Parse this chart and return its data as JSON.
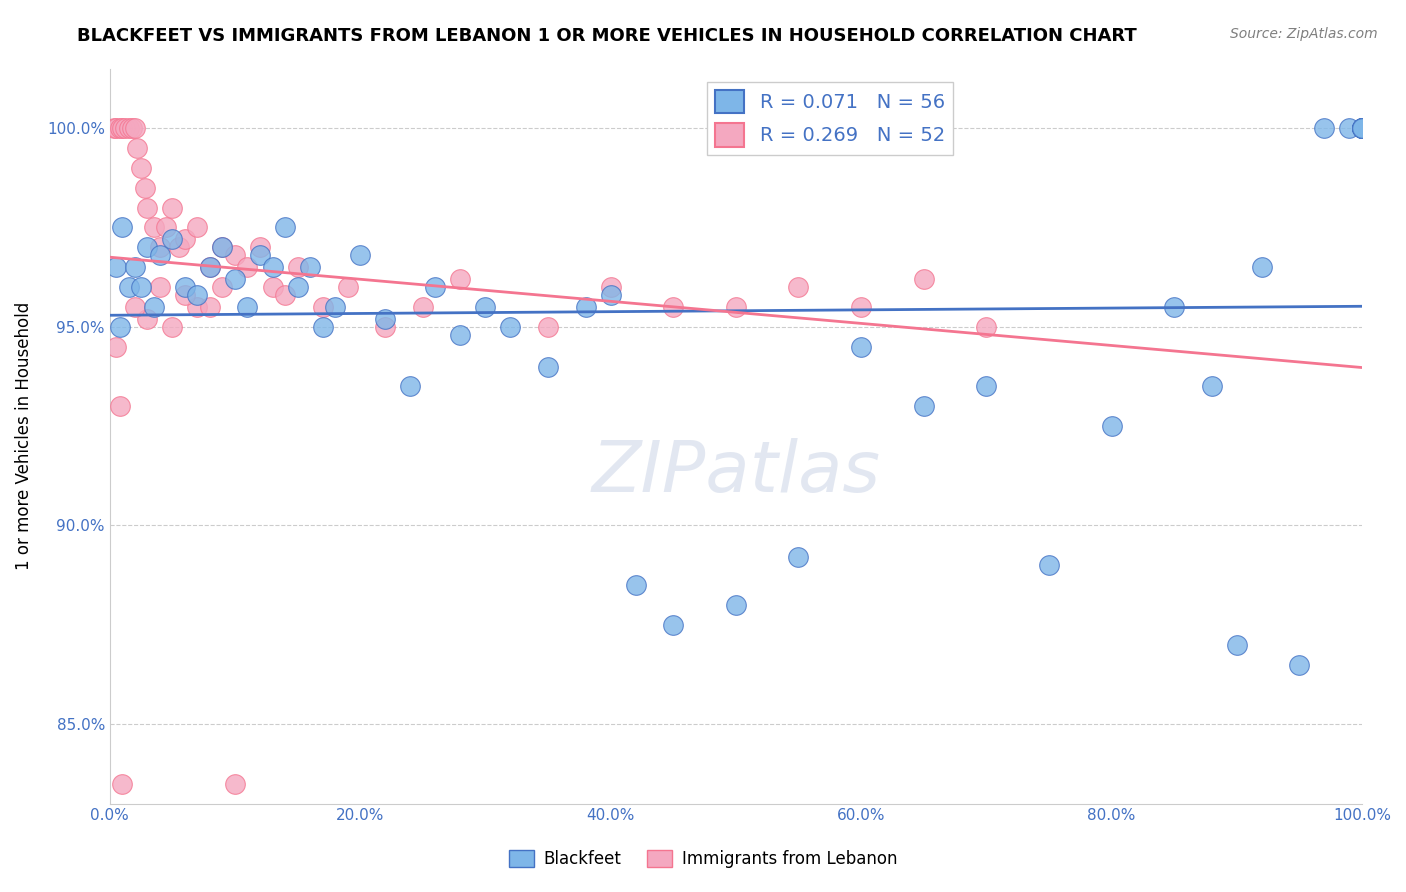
{
  "title": "BLACKFEET VS IMMIGRANTS FROM LEBANON 1 OR MORE VEHICLES IN HOUSEHOLD CORRELATION CHART",
  "source": "Source: ZipAtlas.com",
  "ylabel": "1 or more Vehicles in Household",
  "xmin": 0.0,
  "xmax": 100.0,
  "ymin": 83.0,
  "ymax": 101.5,
  "R_blue": 0.071,
  "N_blue": 56,
  "R_pink": 0.269,
  "N_pink": 52,
  "color_blue": "#7EB6E8",
  "color_pink": "#F4A8C0",
  "color_blue_line": "#4472C4",
  "color_pink_line": "#F47590",
  "legend_text_color": "#4472C4",
  "blue_x": [
    0.5,
    0.8,
    1.0,
    1.5,
    2.0,
    2.5,
    3.0,
    3.5,
    4.0,
    5.0,
    6.0,
    7.0,
    8.0,
    9.0,
    10.0,
    11.0,
    12.0,
    13.0,
    14.0,
    15.0,
    16.0,
    17.0,
    18.0,
    20.0,
    22.0,
    24.0,
    26.0,
    28.0,
    30.0,
    32.0,
    35.0,
    38.0,
    40.0,
    42.0,
    45.0,
    50.0,
    55.0,
    60.0,
    65.0,
    70.0,
    75.0,
    80.0,
    85.0,
    88.0,
    90.0,
    92.0,
    95.0,
    97.0,
    99.0,
    100.0,
    100.0,
    100.0,
    100.0,
    100.0,
    100.0,
    100.0
  ],
  "blue_y": [
    96.5,
    95.0,
    97.5,
    96.0,
    96.5,
    96.0,
    97.0,
    95.5,
    96.8,
    97.2,
    96.0,
    95.8,
    96.5,
    97.0,
    96.2,
    95.5,
    96.8,
    96.5,
    97.5,
    96.0,
    96.5,
    95.0,
    95.5,
    96.8,
    95.2,
    93.5,
    96.0,
    94.8,
    95.5,
    95.0,
    94.0,
    95.5,
    95.8,
    88.5,
    87.5,
    88.0,
    89.2,
    94.5,
    93.0,
    93.5,
    89.0,
    92.5,
    95.5,
    93.5,
    87.0,
    96.5,
    86.5,
    100.0,
    100.0,
    100.0,
    100.0,
    100.0,
    100.0,
    100.0,
    100.0,
    100.0
  ],
  "pink_x": [
    0.3,
    0.5,
    0.8,
    1.0,
    1.2,
    1.5,
    1.8,
    2.0,
    2.2,
    2.5,
    2.8,
    3.0,
    3.5,
    4.0,
    4.5,
    5.0,
    5.5,
    6.0,
    7.0,
    8.0,
    9.0,
    10.0,
    11.0,
    12.0,
    13.0,
    14.0,
    15.0,
    17.0,
    19.0,
    22.0,
    25.0,
    28.0,
    35.0,
    40.0,
    45.0,
    50.0,
    55.0,
    60.0,
    65.0,
    70.0,
    3.0,
    5.0,
    7.0,
    9.0,
    2.0,
    4.0,
    6.0,
    8.0,
    10.0,
    0.5,
    0.8,
    1.0
  ],
  "pink_y": [
    100.0,
    100.0,
    100.0,
    100.0,
    100.0,
    100.0,
    100.0,
    100.0,
    99.5,
    99.0,
    98.5,
    98.0,
    97.5,
    97.0,
    97.5,
    98.0,
    97.0,
    97.2,
    97.5,
    96.5,
    97.0,
    96.8,
    96.5,
    97.0,
    96.0,
    95.8,
    96.5,
    95.5,
    96.0,
    95.0,
    95.5,
    96.2,
    95.0,
    96.0,
    95.5,
    95.5,
    96.0,
    95.5,
    96.2,
    95.0,
    95.2,
    95.0,
    95.5,
    96.0,
    95.5,
    96.0,
    95.8,
    95.5,
    83.5,
    94.5,
    93.0,
    83.5
  ]
}
